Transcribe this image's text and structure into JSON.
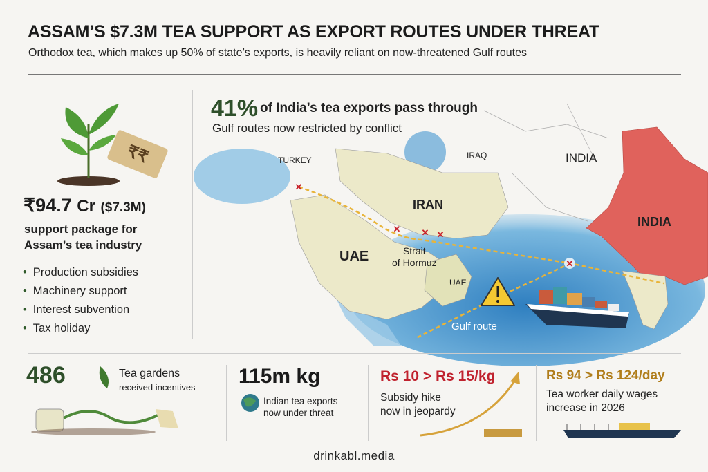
{
  "header": {
    "title": "ASSAM’S $7.3M TEA SUPPORT AS EXPORT ROUTES UNDER THREAT",
    "subtitle": "Orthodox tea, which makes up 50% of state’s exports, is heavily reliant on now-threatened Gulf routes"
  },
  "left_panel": {
    "price_tag_symbol": "₹₹",
    "amount_main": "₹94.7",
    "amount_unit": "Cr",
    "amount_usd": "($7.3M)",
    "support_line1": "support package for",
    "support_line2": "Assam’s tea industry",
    "bullets": [
      "Production subsidies",
      "Machinery support",
      "Interest subvention",
      "Tax holiday"
    ]
  },
  "map": {
    "headline_pct": "41%",
    "headline_text": "of India’s tea exports pass through",
    "headline_sub": "Gulf routes now restricted by conflict",
    "labels": {
      "turkey": "TURKEY",
      "iraq": "IRAQ",
      "india_north": "INDIA",
      "iran": "IRAN",
      "india": "INDIA",
      "uae_large": "UAE",
      "strait_line1": "Strait",
      "strait_line2": "of Hormuz",
      "uae_small": "UAE",
      "gulf_route": "Gulf route"
    },
    "colors": {
      "india": "#e0625c",
      "land": "#ece9c9",
      "sea": "#4a9bd0",
      "route": "#e8b43a",
      "blocked": "#c8202a"
    },
    "icons": [
      "warning-icon",
      "cargo-ship-icon",
      "blocked-x-icon"
    ]
  },
  "stats": [
    {
      "value": "486",
      "line1": "Tea gardens",
      "line2": "received incentives",
      "color": "#2e4f2a"
    },
    {
      "value": "115m kg",
      "line1": "Indian tea exports",
      "line2": "now under threat",
      "color": "#1b1b1b"
    },
    {
      "value": "Rs 10 > Rs 15/kg",
      "line1": "Subsidy hike",
      "line2": "now in jeopardy",
      "color": "#c0222e"
    },
    {
      "value": "Rs 94 > Rs 124/day",
      "line1": "Tea worker daily wages",
      "line2": "increase in 2026",
      "color": "#b07d1a"
    }
  ],
  "footer": {
    "source": "drinkabl.media"
  }
}
